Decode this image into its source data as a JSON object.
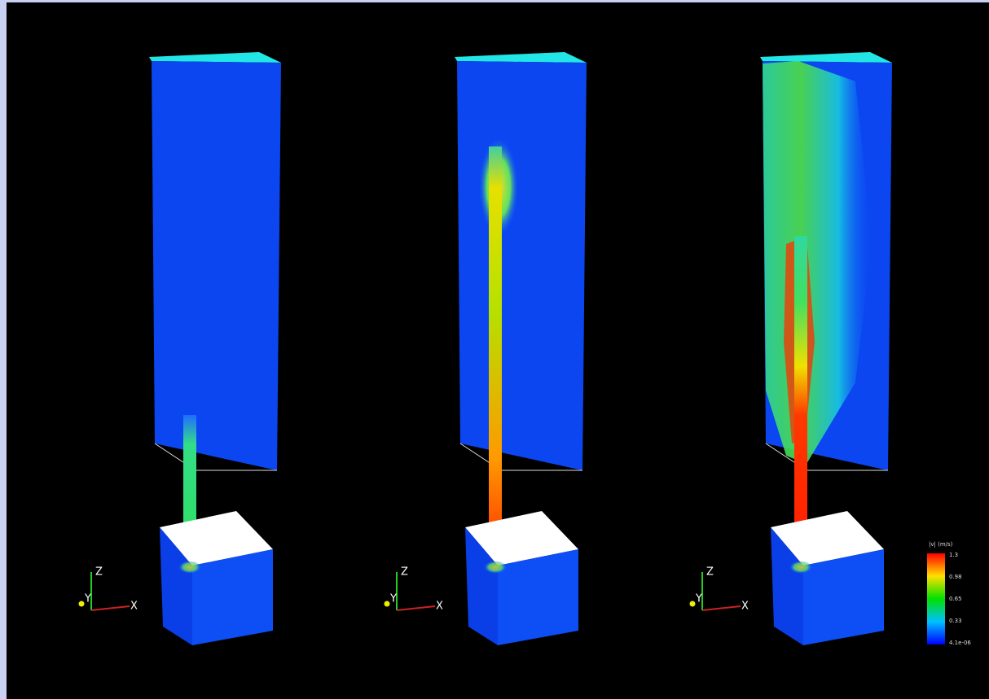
{
  "panels": [
    {
      "axes": {
        "z": "Z",
        "y": "Y",
        "x": "X"
      }
    },
    {
      "axes": {
        "z": "Z",
        "y": "Y",
        "x": "X"
      }
    },
    {
      "axes": {
        "z": "Z",
        "y": "Y",
        "x": "X"
      }
    }
  ],
  "colorbar": {
    "title": "|v| (m/s)",
    "labels": [
      "1.3",
      "0.98",
      "0.65",
      "0.33",
      "4.1e-06"
    ]
  }
}
